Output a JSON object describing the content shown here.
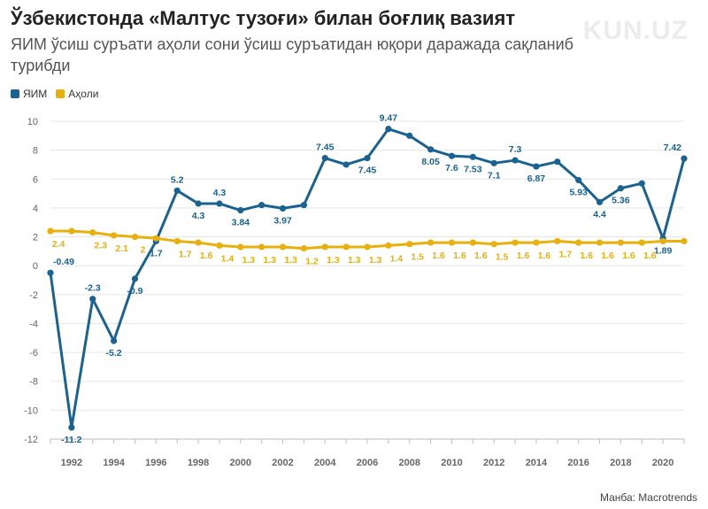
{
  "title": "Ўзбекистонда «Малтус тузоғи» билан боғлиқ вазият",
  "subtitle": "ЯИМ ўсиш суръати аҳоли сони ўсиш суръатидан юқори даражада сақланиб турибди",
  "logo_text": "KUN.UZ",
  "source": "Манба: Macrotrends",
  "colors": {
    "gdp": "#1a6391",
    "population": "#e8b00c",
    "grid": "#e6e6e6"
  },
  "chart_data": {
    "type": "line",
    "x": [
      1991,
      1992,
      1993,
      1994,
      1995,
      1996,
      1997,
      1998,
      1999,
      2000,
      2001,
      2002,
      2003,
      2004,
      2005,
      2006,
      2007,
      2008,
      2009,
      2010,
      2011,
      2012,
      2013,
      2014,
      2015,
      2016,
      2017,
      2018,
      2019,
      2020,
      2021
    ],
    "x_tick_labels": [
      "1992",
      "1994",
      "1996",
      "1998",
      "2000",
      "2002",
      "2004",
      "2006",
      "2008",
      "2010",
      "2012",
      "2014",
      "2016",
      "2018",
      "2020"
    ],
    "y_ticks": [
      10,
      8,
      6,
      4,
      2,
      0,
      -2,
      -4,
      -6,
      -8,
      -10,
      -12
    ],
    "ylim": [
      -12,
      10
    ],
    "grid": true,
    "legend_position": "top-left",
    "series": [
      {
        "name": "ЯИМ",
        "values": [
          -0.49,
          -11.2,
          -2.3,
          -5.2,
          -0.9,
          1.7,
          5.2,
          4.3,
          4.3,
          3.84,
          4.2,
          3.97,
          4.2,
          7.45,
          7.0,
          7.45,
          9.47,
          9.0,
          8.05,
          7.6,
          7.53,
          7.1,
          7.3,
          6.87,
          7.2,
          5.93,
          4.4,
          5.36,
          5.7,
          1.89,
          7.42
        ],
        "labels": [
          "-0.49",
          "-11.2",
          "-2.3",
          "-5.2",
          "-0.9",
          "1.7",
          "5.2",
          "4.3",
          "4.3",
          "3.84",
          "",
          "3.97",
          "",
          "7.45",
          "",
          "7.45",
          "9.47",
          "",
          "8.05",
          "7.6",
          "7.53",
          "7.1",
          "7.3",
          "6.87",
          "",
          "5.93",
          "4.4",
          "5.36",
          "",
          "1.89",
          "7.42"
        ]
      },
      {
        "name": "Аҳоли",
        "values": [
          2.4,
          2.4,
          2.3,
          2.1,
          2.0,
          1.9,
          1.7,
          1.6,
          1.4,
          1.3,
          1.3,
          1.3,
          1.2,
          1.3,
          1.3,
          1.3,
          1.4,
          1.5,
          1.6,
          1.6,
          1.6,
          1.5,
          1.6,
          1.6,
          1.7,
          1.6,
          1.6,
          1.6,
          1.6,
          1.7,
          1.7
        ],
        "labels": [
          "2.4",
          "",
          "2.3",
          "2.1",
          "2",
          "",
          "1.7",
          "1.6",
          "1.4",
          "1.3",
          "1.3",
          "1.3",
          "1.2",
          "1.3",
          "1.3",
          "1.3",
          "1.4",
          "1.5",
          "1.6",
          "1.6",
          "1.6",
          "1.5",
          "1.6",
          "1.6",
          "1.7",
          "1.6",
          "1.6",
          "1.6",
          "1.6",
          "",
          ""
        ]
      }
    ]
  }
}
